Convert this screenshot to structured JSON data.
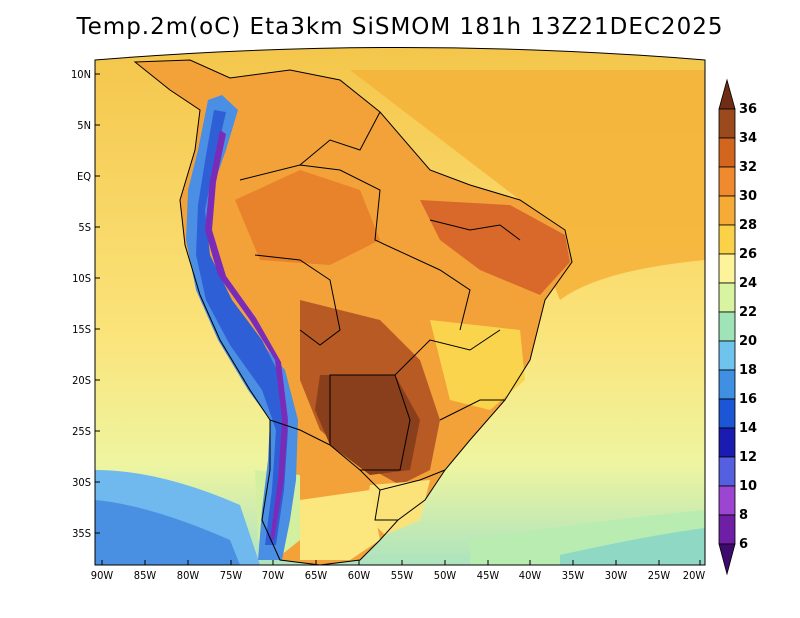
{
  "title": "Temp.2m(oC) Eta3km SiSMOM 181h 13Z21DEC2025",
  "map": {
    "lat_labels": [
      "10N",
      "5N",
      "EQ",
      "5S",
      "10S",
      "15S",
      "20S",
      "25S",
      "30S",
      "35S"
    ],
    "lon_labels": [
      "90W",
      "85W",
      "80W",
      "75W",
      "70W",
      "65W",
      "60W",
      "55W",
      "50W",
      "45W",
      "40W",
      "35W",
      "30W",
      "25W",
      "20W"
    ]
  },
  "colorbar": {
    "labels": [
      "36",
      "34",
      "32",
      "30",
      "28",
      "26",
      "24",
      "22",
      "20",
      "18",
      "16",
      "14",
      "12",
      "10",
      "8",
      "6"
    ],
    "colors": [
      "#6e2d14",
      "#9a4a1d",
      "#d2661e",
      "#ef8a2e",
      "#f5ab35",
      "#fbd247",
      "#fcf39a",
      "#d8f4a0",
      "#a0e3b6",
      "#6fc4ee",
      "#3f8fe3",
      "#1c55d6",
      "#1a1bb0",
      "#5460e0",
      "#9b45d0",
      "#6e1fa6",
      "#3d0b6e"
    ]
  }
}
